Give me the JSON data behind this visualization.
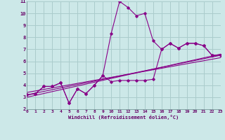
{
  "xlabel": "Windchill (Refroidissement éolien,°C)",
  "xlim": [
    0,
    23
  ],
  "ylim": [
    2,
    11
  ],
  "xticks": [
    0,
    1,
    2,
    3,
    4,
    5,
    6,
    7,
    8,
    9,
    10,
    11,
    12,
    13,
    14,
    15,
    16,
    17,
    18,
    19,
    20,
    21,
    22,
    23
  ],
  "yticks": [
    2,
    3,
    4,
    5,
    6,
    7,
    8,
    9,
    10,
    11
  ],
  "bg_color": "#cce8e8",
  "grid_color": "#aacccc",
  "line_color": "#880088",
  "series1_y": [
    3.2,
    3.3,
    3.9,
    3.9,
    4.2,
    2.5,
    3.7,
    3.3,
    4.0,
    4.8,
    4.3,
    4.4,
    4.4,
    4.4,
    4.4,
    4.5,
    7.0,
    7.5,
    7.1,
    7.5,
    7.5,
    7.3,
    6.5,
    6.5
  ],
  "series2_y": [
    3.2,
    3.3,
    3.9,
    3.9,
    4.2,
    2.5,
    3.7,
    3.3,
    4.0,
    4.8,
    8.3,
    11.0,
    10.5,
    9.8,
    10.0,
    7.7,
    7.0,
    7.5,
    7.1,
    7.5,
    7.5,
    7.3,
    6.5,
    6.5
  ],
  "line3_x": [
    0,
    23
  ],
  "line3_y": [
    3.2,
    6.5
  ],
  "line4_x": [
    0,
    23
  ],
  "line4_y": [
    3.4,
    6.3
  ],
  "line5_x": [
    0,
    23
  ],
  "line5_y": [
    3.0,
    6.6
  ]
}
